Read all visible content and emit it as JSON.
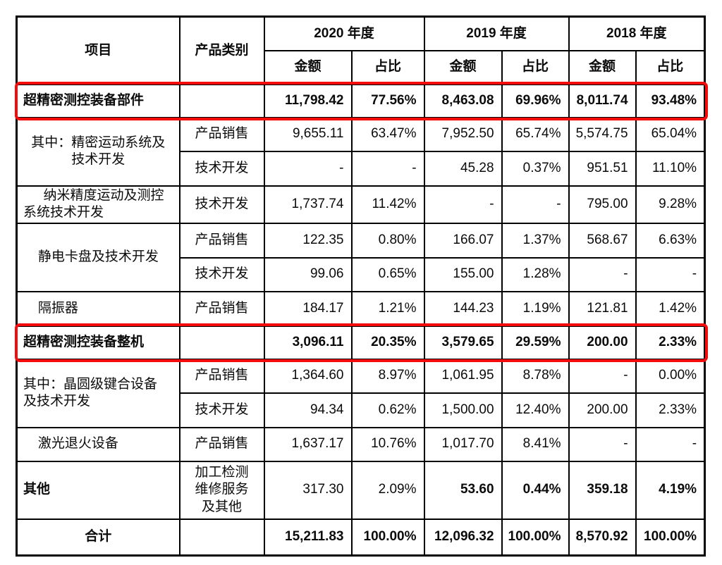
{
  "table": {
    "header": {
      "item": "项目",
      "category": "产品类别",
      "years": [
        "2020 年度",
        "2019 年度",
        "2018 年度"
      ],
      "amount": "金额",
      "ratio": "占比"
    },
    "rows": [
      {
        "item": "超精密测控装备部件",
        "category": "",
        "v": [
          "11,798.42",
          "77.56%",
          "8,463.08",
          "69.96%",
          "8,011.74",
          "93.48%"
        ]
      },
      {
        "item": "其中：精密运动系统及\n技术开发",
        "category": "产品销售",
        "v": [
          "9,655.11",
          "63.47%",
          "7,952.50",
          "65.74%",
          "5,574.75",
          "65.04%"
        ]
      },
      {
        "category": "技术开发",
        "v": [
          "-",
          "-",
          "45.28",
          "0.37%",
          "951.51",
          "11.10%"
        ]
      },
      {
        "item": "纳米精度运动及测控\n系统技术开发",
        "category": "技术开发",
        "v": [
          "1,737.74",
          "11.42%",
          "-",
          "-",
          "795.00",
          "9.28%"
        ]
      },
      {
        "item": "静电卡盘及技术开发",
        "category": "产品销售",
        "v": [
          "122.35",
          "0.80%",
          "166.07",
          "1.37%",
          "568.67",
          "6.63%"
        ]
      },
      {
        "category": "技术开发",
        "v": [
          "99.06",
          "0.65%",
          "155.00",
          "1.28%",
          "-",
          "-"
        ]
      },
      {
        "item": "隔振器",
        "category": "产品销售",
        "v": [
          "184.17",
          "1.21%",
          "144.23",
          "1.19%",
          "121.81",
          "1.42%"
        ]
      },
      {
        "item": "超精密测控装备整机",
        "category": "",
        "v": [
          "3,096.11",
          "20.35%",
          "3,579.65",
          "29.59%",
          "200.00",
          "2.33%"
        ]
      },
      {
        "item": "其中：晶圆级键合设备\n及技术开发",
        "category": "产品销售",
        "v": [
          "1,364.60",
          "8.97%",
          "1,061.95",
          "8.78%",
          "-",
          "0.00%"
        ]
      },
      {
        "category": "技术开发",
        "v": [
          "94.34",
          "0.62%",
          "1,500.00",
          "12.40%",
          "200.00",
          "2.33%"
        ]
      },
      {
        "item": "激光退火设备",
        "category": "产品销售",
        "v": [
          "1,637.17",
          "10.76%",
          "1,017.70",
          "8.41%",
          "-",
          "-"
        ]
      },
      {
        "item": "其他",
        "category": "加工检测\n维修服务\n及其他",
        "v": [
          "317.30",
          "2.09%",
          "53.60",
          "0.44%",
          "359.18",
          "4.19%"
        ]
      },
      {
        "item": "合计",
        "category": "",
        "v": [
          "15,211.83",
          "100.00%",
          "12,096.32",
          "100.00%",
          "8,570.92",
          "100.00%"
        ]
      }
    ]
  },
  "colors": {
    "highlight_red": "#f40b0b",
    "grid_black": "#000000",
    "background": "#ffffff"
  }
}
